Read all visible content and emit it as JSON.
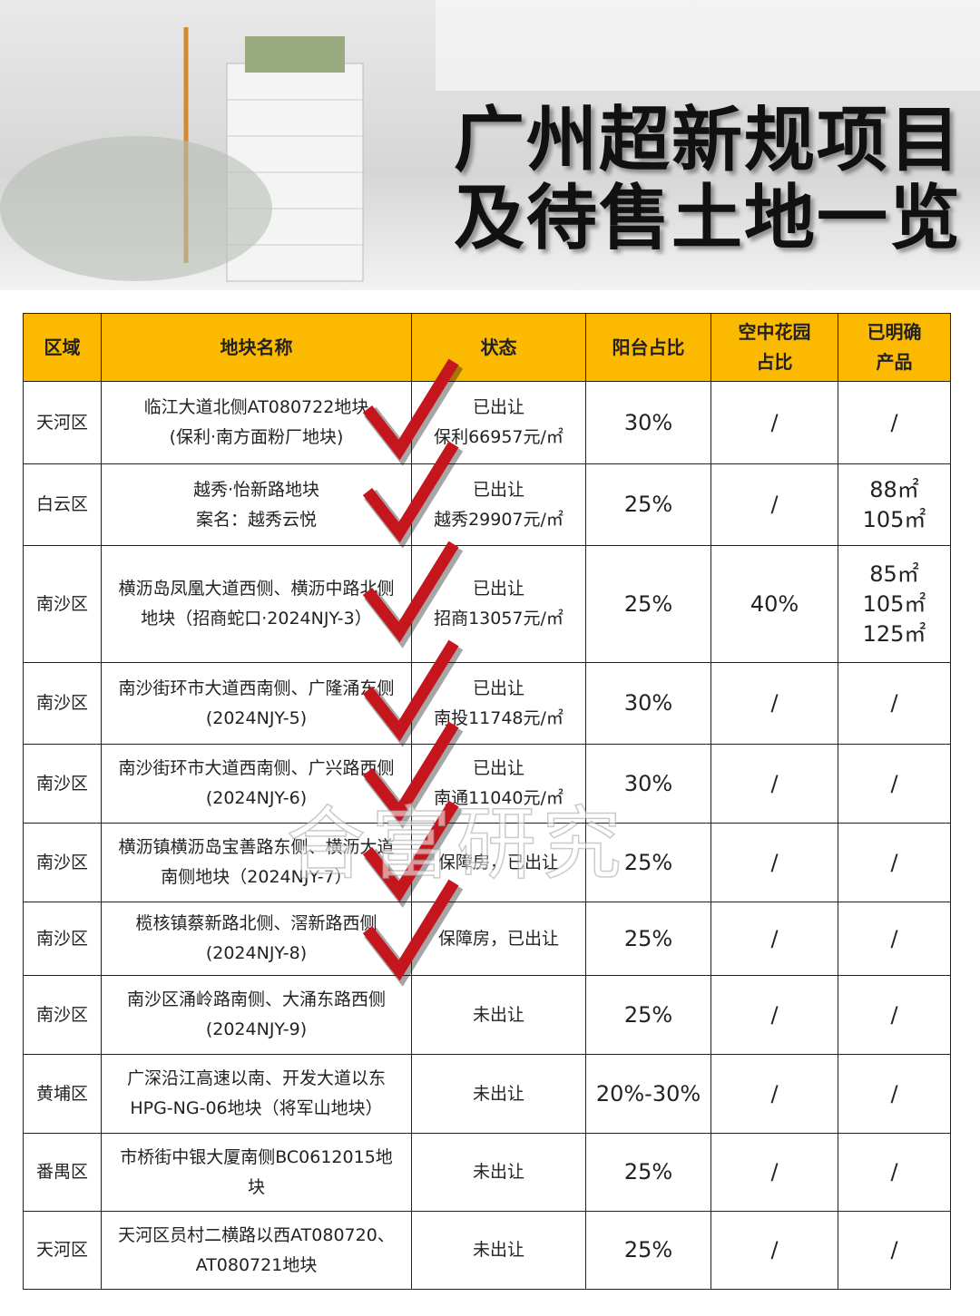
{
  "header": {
    "title_lines": [
      "广州超新规项目",
      "及待售土地一览"
    ]
  },
  "table": {
    "columns": [
      "区域",
      "地块名称",
      "状态",
      "阳台占比",
      "空中花园\n占比",
      "已明确\n产品"
    ],
    "rows": [
      [
        [
          "天河区"
        ],
        [
          "临江大道北侧AT080722地块",
          "(保利·南方面粉厂地块)"
        ],
        [
          "已出让",
          "保利66957元/㎡"
        ],
        [
          "30%"
        ],
        [
          "/"
        ],
        [
          "/"
        ]
      ],
      [
        [
          "白云区"
        ],
        [
          "越秀·怡新路地块",
          "案名：越秀云悦"
        ],
        [
          "已出让",
          "越秀29907元/㎡"
        ],
        [
          "25%"
        ],
        [
          "/"
        ],
        [
          "88㎡",
          "105㎡"
        ]
      ],
      [
        [
          "南沙区"
        ],
        [
          "横沥岛凤凰大道西侧、横沥中路北侧",
          "地块（招商蛇口·2024NJY-3）"
        ],
        [
          "已出让",
          "招商13057元/㎡"
        ],
        [
          "25%"
        ],
        [
          "40%"
        ],
        [
          "85㎡",
          "105㎡",
          "125㎡"
        ]
      ],
      [
        [
          "南沙区"
        ],
        [
          "南沙街环市大道西南侧、广隆涌东侧",
          "(2024NJY-5)"
        ],
        [
          "已出让",
          "南投11748元/㎡"
        ],
        [
          "30%"
        ],
        [
          "/"
        ],
        [
          "/"
        ]
      ],
      [
        [
          "南沙区"
        ],
        [
          "南沙街环市大道西南侧、广兴路西侧",
          "(2024NJY-6)"
        ],
        [
          "已出让",
          "南通11040元/㎡"
        ],
        [
          "30%"
        ],
        [
          "/"
        ],
        [
          "/"
        ]
      ],
      [
        [
          "南沙区"
        ],
        [
          "横沥镇横沥岛宝善路东侧、横沥大道",
          "南侧地块（2024NJY-7）"
        ],
        [
          "保障房，已出让"
        ],
        [
          "25%"
        ],
        [
          "/"
        ],
        [
          "/"
        ]
      ],
      [
        [
          "南沙区"
        ],
        [
          "榄核镇蔡新路北侧、滘新路西侧",
          "(2024NJY-8)"
        ],
        [
          "保障房，已出让"
        ],
        [
          "25%"
        ],
        [
          "/"
        ],
        [
          "/"
        ]
      ],
      [
        [
          "南沙区"
        ],
        [
          "南沙区涌岭路南侧、大涌东路西侧",
          "(2024NJY-9)"
        ],
        [
          "未出让"
        ],
        [
          "25%"
        ],
        [
          "/"
        ],
        [
          "/"
        ]
      ],
      [
        [
          "黄埔区"
        ],
        [
          "广深沿江高速以南、开发大道以东",
          "HPG-NG-06地块（将军山地块）"
        ],
        [
          "未出让"
        ],
        [
          "20%-30%"
        ],
        [
          "/"
        ],
        [
          "/"
        ]
      ],
      [
        [
          "番禺区"
        ],
        [
          "市桥街中银大厦南侧BC0612015地",
          "块"
        ],
        [
          "未出让"
        ],
        [
          "25%"
        ],
        [
          "/"
        ],
        [
          "/"
        ]
      ],
      [
        [
          "天河区"
        ],
        [
          "天河区员村二横路以西AT080720、",
          "AT080721地块"
        ],
        [
          "未出让"
        ],
        [
          "25%"
        ],
        [
          "/"
        ],
        [
          "/"
        ]
      ]
    ]
  },
  "watermark": "合富研究"
}
